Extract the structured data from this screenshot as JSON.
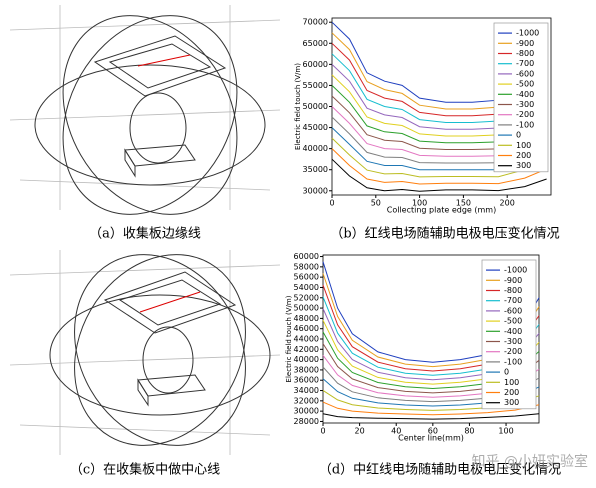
{
  "chart_data": [
    {
      "type": "line",
      "xlabel": "Collecting plate edge (mm)",
      "ylabel": "Electric field touch (V/m)",
      "x": [
        0,
        20,
        40,
        60,
        80,
        100,
        130,
        160,
        190,
        220,
        245
      ],
      "xlim": [
        0,
        250
      ],
      "xticks": [
        0,
        50,
        100,
        150,
        200
      ],
      "ylim": [
        29000,
        71000
      ],
      "yticks": [
        30000,
        35000,
        40000,
        45000,
        50000,
        55000,
        60000,
        65000,
        70000
      ],
      "legend": "upper right",
      "series": [
        {
          "name": "-1000",
          "color": "#1f3fbf",
          "values": [
            70000,
            66000,
            58000,
            56000,
            55000,
            52000,
            51000,
            51000,
            51500,
            57000,
            64000
          ]
        },
        {
          "name": "-900",
          "color": "#e8a020",
          "values": [
            67500,
            63500,
            55900,
            54000,
            53100,
            50300,
            49400,
            49400,
            49850,
            55000,
            61600
          ]
        },
        {
          "name": "-800",
          "color": "#d62728",
          "values": [
            65000,
            61000,
            53800,
            52000,
            51200,
            48600,
            47800,
            47800,
            48200,
            53000,
            59200
          ]
        },
        {
          "name": "-700",
          "color": "#17becf",
          "values": [
            62500,
            58500,
            51700,
            50000,
            49300,
            46900,
            46200,
            46200,
            46550,
            51000,
            56800
          ]
        },
        {
          "name": "-600",
          "color": "#9467bd",
          "values": [
            60000,
            56000,
            49600,
            48000,
            47400,
            45200,
            44600,
            44600,
            44900,
            49000,
            54400
          ]
        },
        {
          "name": "-500",
          "color": "#e0d020",
          "values": [
            57500,
            53500,
            47500,
            46000,
            45500,
            43500,
            43000,
            43000,
            43250,
            47000,
            52000
          ]
        },
        {
          "name": "-400",
          "color": "#2ca02c",
          "values": [
            55000,
            51000,
            45400,
            44000,
            43600,
            41800,
            41400,
            41400,
            41600,
            45000,
            49600
          ]
        },
        {
          "name": "-300",
          "color": "#8c564b",
          "values": [
            52500,
            48500,
            43300,
            42000,
            41700,
            40100,
            39800,
            39800,
            39950,
            43000,
            47200
          ]
        },
        {
          "name": "-200",
          "color": "#e377c2",
          "values": [
            50000,
            46000,
            41200,
            40000,
            39800,
            38400,
            38200,
            38200,
            38300,
            41000,
            44800
          ]
        },
        {
          "name": "-100",
          "color": "#7f7f7f",
          "values": [
            47500,
            43500,
            39100,
            38000,
            37900,
            36700,
            36600,
            36600,
            36650,
            39000,
            42400
          ]
        },
        {
          "name": "0",
          "color": "#1f77b4",
          "values": [
            45000,
            41000,
            37000,
            36000,
            36000,
            35000,
            35000,
            35000,
            35000,
            37000,
            40000
          ]
        },
        {
          "name": "100",
          "color": "#bcbd22",
          "values": [
            42500,
            38500,
            34900,
            34000,
            34100,
            33300,
            33400,
            33400,
            33350,
            35000,
            37600
          ]
        },
        {
          "name": "200",
          "color": "#ff7f0e",
          "values": [
            40000,
            36000,
            32800,
            32000,
            32200,
            31600,
            31800,
            31800,
            31700,
            33000,
            35200
          ]
        },
        {
          "name": "300",
          "color": "#000000",
          "values": [
            37500,
            33500,
            30700,
            30000,
            30300,
            29900,
            30200,
            30200,
            30050,
            31000,
            32800
          ]
        }
      ]
    },
    {
      "type": "line",
      "xlabel": "Center line(mm)",
      "ylabel": "Electric field touch (V/m)",
      "x": [
        0,
        8,
        16,
        30,
        45,
        60,
        75,
        90,
        105,
        118
      ],
      "xlim": [
        0,
        118
      ],
      "xticks": [
        0,
        20,
        40,
        60,
        80,
        100
      ],
      "ylim": [
        27700,
        60300
      ],
      "yticks": [
        28000,
        30000,
        32000,
        34000,
        36000,
        38000,
        40000,
        42000,
        44000,
        46000,
        48000,
        50000,
        52000,
        54000,
        56000,
        58000,
        60000
      ],
      "legend": "upper right",
      "series": [
        {
          "name": "-1000",
          "color": "#1f3fbf",
          "values": [
            59000,
            50000,
            45000,
            41500,
            40000,
            39500,
            40000,
            41000,
            44000,
            52000
          ]
        },
        {
          "name": "-900",
          "color": "#e8a020",
          "values": [
            56730,
            48380,
            43750,
            40510,
            39120,
            38650,
            39120,
            40060,
            42850,
            50270
          ]
        },
        {
          "name": "-800",
          "color": "#d62728",
          "values": [
            54460,
            46760,
            42500,
            39520,
            38240,
            37800,
            38240,
            39120,
            41700,
            48540
          ]
        },
        {
          "name": "-700",
          "color": "#17becf",
          "values": [
            52190,
            45140,
            41250,
            38530,
            37360,
            36950,
            37360,
            38180,
            40550,
            46810
          ]
        },
        {
          "name": "-600",
          "color": "#9467bd",
          "values": [
            49920,
            43520,
            40000,
            37540,
            36480,
            36100,
            36480,
            37240,
            39400,
            45080
          ]
        },
        {
          "name": "-500",
          "color": "#e0d020",
          "values": [
            47650,
            41900,
            38750,
            36550,
            35600,
            35250,
            35600,
            36300,
            38250,
            43350
          ]
        },
        {
          "name": "-400",
          "color": "#2ca02c",
          "values": [
            45380,
            40280,
            37500,
            35560,
            34720,
            34400,
            34720,
            35360,
            37100,
            41620
          ]
        },
        {
          "name": "-300",
          "color": "#8c564b",
          "values": [
            43110,
            38660,
            36250,
            34570,
            33840,
            33550,
            33840,
            34420,
            35950,
            39890
          ]
        },
        {
          "name": "-200",
          "color": "#e377c2",
          "values": [
            40840,
            37040,
            35000,
            33580,
            32960,
            32700,
            32960,
            33480,
            34800,
            38160
          ]
        },
        {
          "name": "-100",
          "color": "#7f7f7f",
          "values": [
            38570,
            35420,
            33750,
            32590,
            32080,
            31850,
            32080,
            32540,
            33650,
            36430
          ]
        },
        {
          "name": "0",
          "color": "#1f77b4",
          "values": [
            36300,
            33800,
            32500,
            31600,
            31200,
            31000,
            31200,
            31600,
            32500,
            34700
          ]
        },
        {
          "name": "100",
          "color": "#bcbd22",
          "values": [
            34030,
            32180,
            31250,
            30610,
            30320,
            30150,
            30320,
            30660,
            31350,
            32970
          ]
        },
        {
          "name": "200",
          "color": "#ff7f0e",
          "values": [
            31760,
            30560,
            30000,
            29620,
            29440,
            29300,
            29440,
            29720,
            30200,
            31240
          ]
        },
        {
          "name": "300",
          "color": "#000000",
          "values": [
            29490,
            28940,
            28750,
            28630,
            28560,
            28450,
            28560,
            28780,
            29050,
            29510
          ]
        }
      ]
    }
  ],
  "captions": [
    "（a）收集板边缘线",
    "（b）红线电场随辅助电极电压变化情况",
    "（c）在收集板中做中心线",
    "（d）中红线电场随辅助电极电压变化情况"
  ],
  "watermark": "知乎 @小妍实验室"
}
